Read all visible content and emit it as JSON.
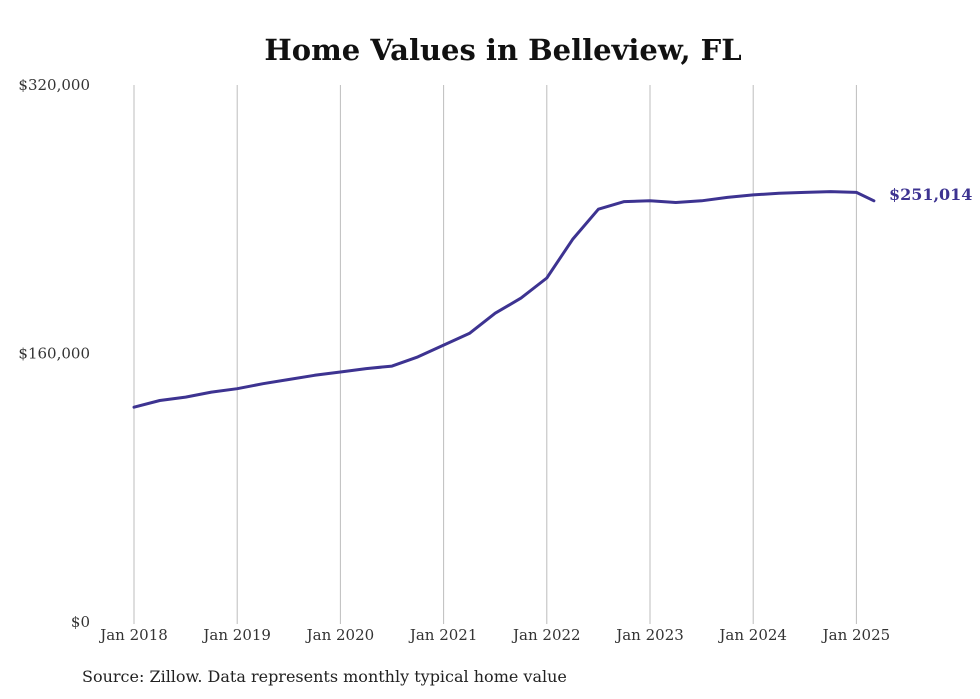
{
  "chart_data": {
    "type": "line",
    "title": "Home Values in Belleview, FL",
    "xlabel": "",
    "ylabel": "",
    "ylim": [
      0,
      320000
    ],
    "y_ticks": [
      "$0",
      "$160,000",
      "$320,000"
    ],
    "y_tick_values": [
      0,
      160000,
      320000
    ],
    "x_ticks": [
      "Jan 2018",
      "Jan 2019",
      "Jan 2020",
      "Jan 2021",
      "Jan 2022",
      "Jan 2023",
      "Jan 2024",
      "Jan 2025"
    ],
    "x_tick_values": [
      2018.0,
      2019.0,
      2020.0,
      2021.0,
      2022.0,
      2023.0,
      2024.0,
      2025.0
    ],
    "xlim": [
      2018.0,
      2025.17
    ],
    "grid": "vertical",
    "line_color": "#3d3391",
    "end_label": "$251,014",
    "series": [
      {
        "values": [
          {
            "x": 2018.0,
            "y": 128000
          },
          {
            "x": 2018.25,
            "y": 132000
          },
          {
            "x": 2018.5,
            "y": 134000
          },
          {
            "x": 2018.75,
            "y": 137000
          },
          {
            "x": 2019.0,
            "y": 139000
          },
          {
            "x": 2019.25,
            "y": 142000
          },
          {
            "x": 2019.5,
            "y": 144500
          },
          {
            "x": 2019.75,
            "y": 147000
          },
          {
            "x": 2020.0,
            "y": 149000
          },
          {
            "x": 2020.25,
            "y": 151000
          },
          {
            "x": 2020.5,
            "y": 152500
          },
          {
            "x": 2020.75,
            "y": 158000
          },
          {
            "x": 2021.0,
            "y": 165000
          },
          {
            "x": 2021.25,
            "y": 172000
          },
          {
            "x": 2021.5,
            "y": 184000
          },
          {
            "x": 2021.75,
            "y": 193000
          },
          {
            "x": 2022.0,
            "y": 205000
          },
          {
            "x": 2022.25,
            "y": 228000
          },
          {
            "x": 2022.5,
            "y": 246000
          },
          {
            "x": 2022.75,
            "y": 250500
          },
          {
            "x": 2023.0,
            "y": 251000
          },
          {
            "x": 2023.25,
            "y": 250000
          },
          {
            "x": 2023.5,
            "y": 251000
          },
          {
            "x": 2023.75,
            "y": 253000
          },
          {
            "x": 2024.0,
            "y": 254500
          },
          {
            "x": 2024.25,
            "y": 255500
          },
          {
            "x": 2024.5,
            "y": 256000
          },
          {
            "x": 2024.75,
            "y": 256500
          },
          {
            "x": 2025.0,
            "y": 256000
          },
          {
            "x": 2025.17,
            "y": 251014
          }
        ]
      }
    ]
  },
  "source_note": "Source: Zillow. Data represents monthly typical home value"
}
